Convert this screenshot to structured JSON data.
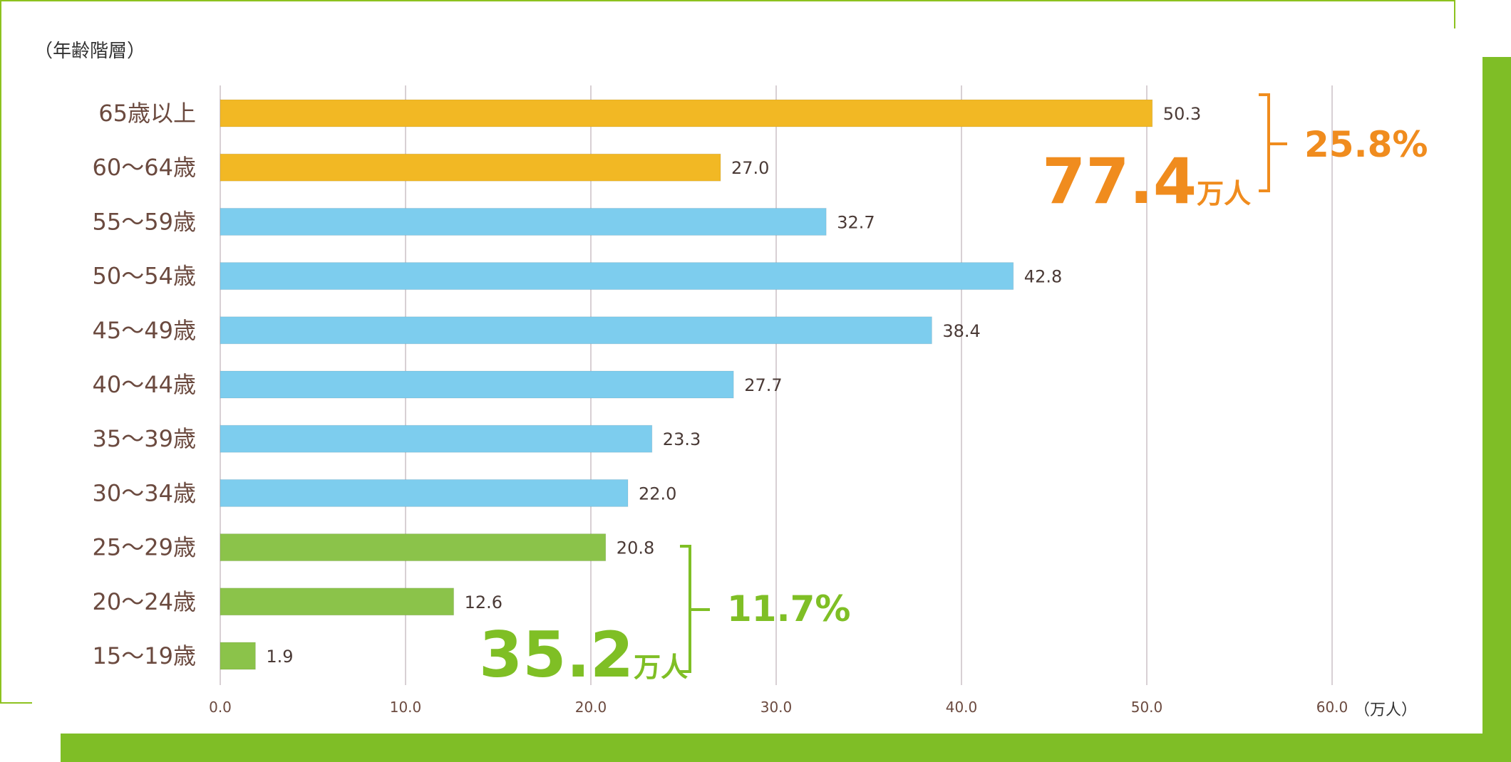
{
  "chart_data": {
    "type": "bar",
    "orientation": "horizontal",
    "y_axis_title": "（年齢階層）",
    "x_unit": "（万人）",
    "categories": [
      "65歳以上",
      "60～64歳",
      "55～59歳",
      "50～54歳",
      "45～49歳",
      "40～44歳",
      "35～39歳",
      "30～34歳",
      "25～29歳",
      "20～24歳",
      "15～19歳"
    ],
    "values": [
      50.3,
      27.0,
      32.7,
      42.8,
      38.4,
      27.7,
      23.3,
      22.0,
      20.8,
      12.6,
      1.9
    ],
    "value_labels": [
      "50.3",
      "27.0",
      "32.7",
      "42.8",
      "38.4",
      "27.7",
      "23.3",
      "22.0",
      "20.8",
      "12.6",
      "1.9"
    ],
    "bar_groups": [
      "senior",
      "senior",
      "middle",
      "middle",
      "middle",
      "middle",
      "middle",
      "middle",
      "young",
      "young",
      "young"
    ],
    "xlim": [
      0,
      60
    ],
    "x_ticks": [
      "0.0",
      "10.0",
      "20.0",
      "30.0",
      "40.0",
      "50.0",
      "60.0"
    ],
    "grid": "vertical",
    "colors": {
      "senior": "#f2b824",
      "middle": "#7dcdee",
      "young": "#8bc34a",
      "orange_accent": "#f08c1e",
      "green_accent": "#7fbf25",
      "frame": "#8dc21f",
      "text": "#6b4a3f",
      "grid": "#d8d0d4"
    },
    "annotations": [
      {
        "group": "senior",
        "total": "77.4",
        "unit": "万人",
        "percent": "25.8%"
      },
      {
        "group": "young",
        "total": "35.2",
        "unit": "万人",
        "percent": "11.7%"
      }
    ]
  }
}
